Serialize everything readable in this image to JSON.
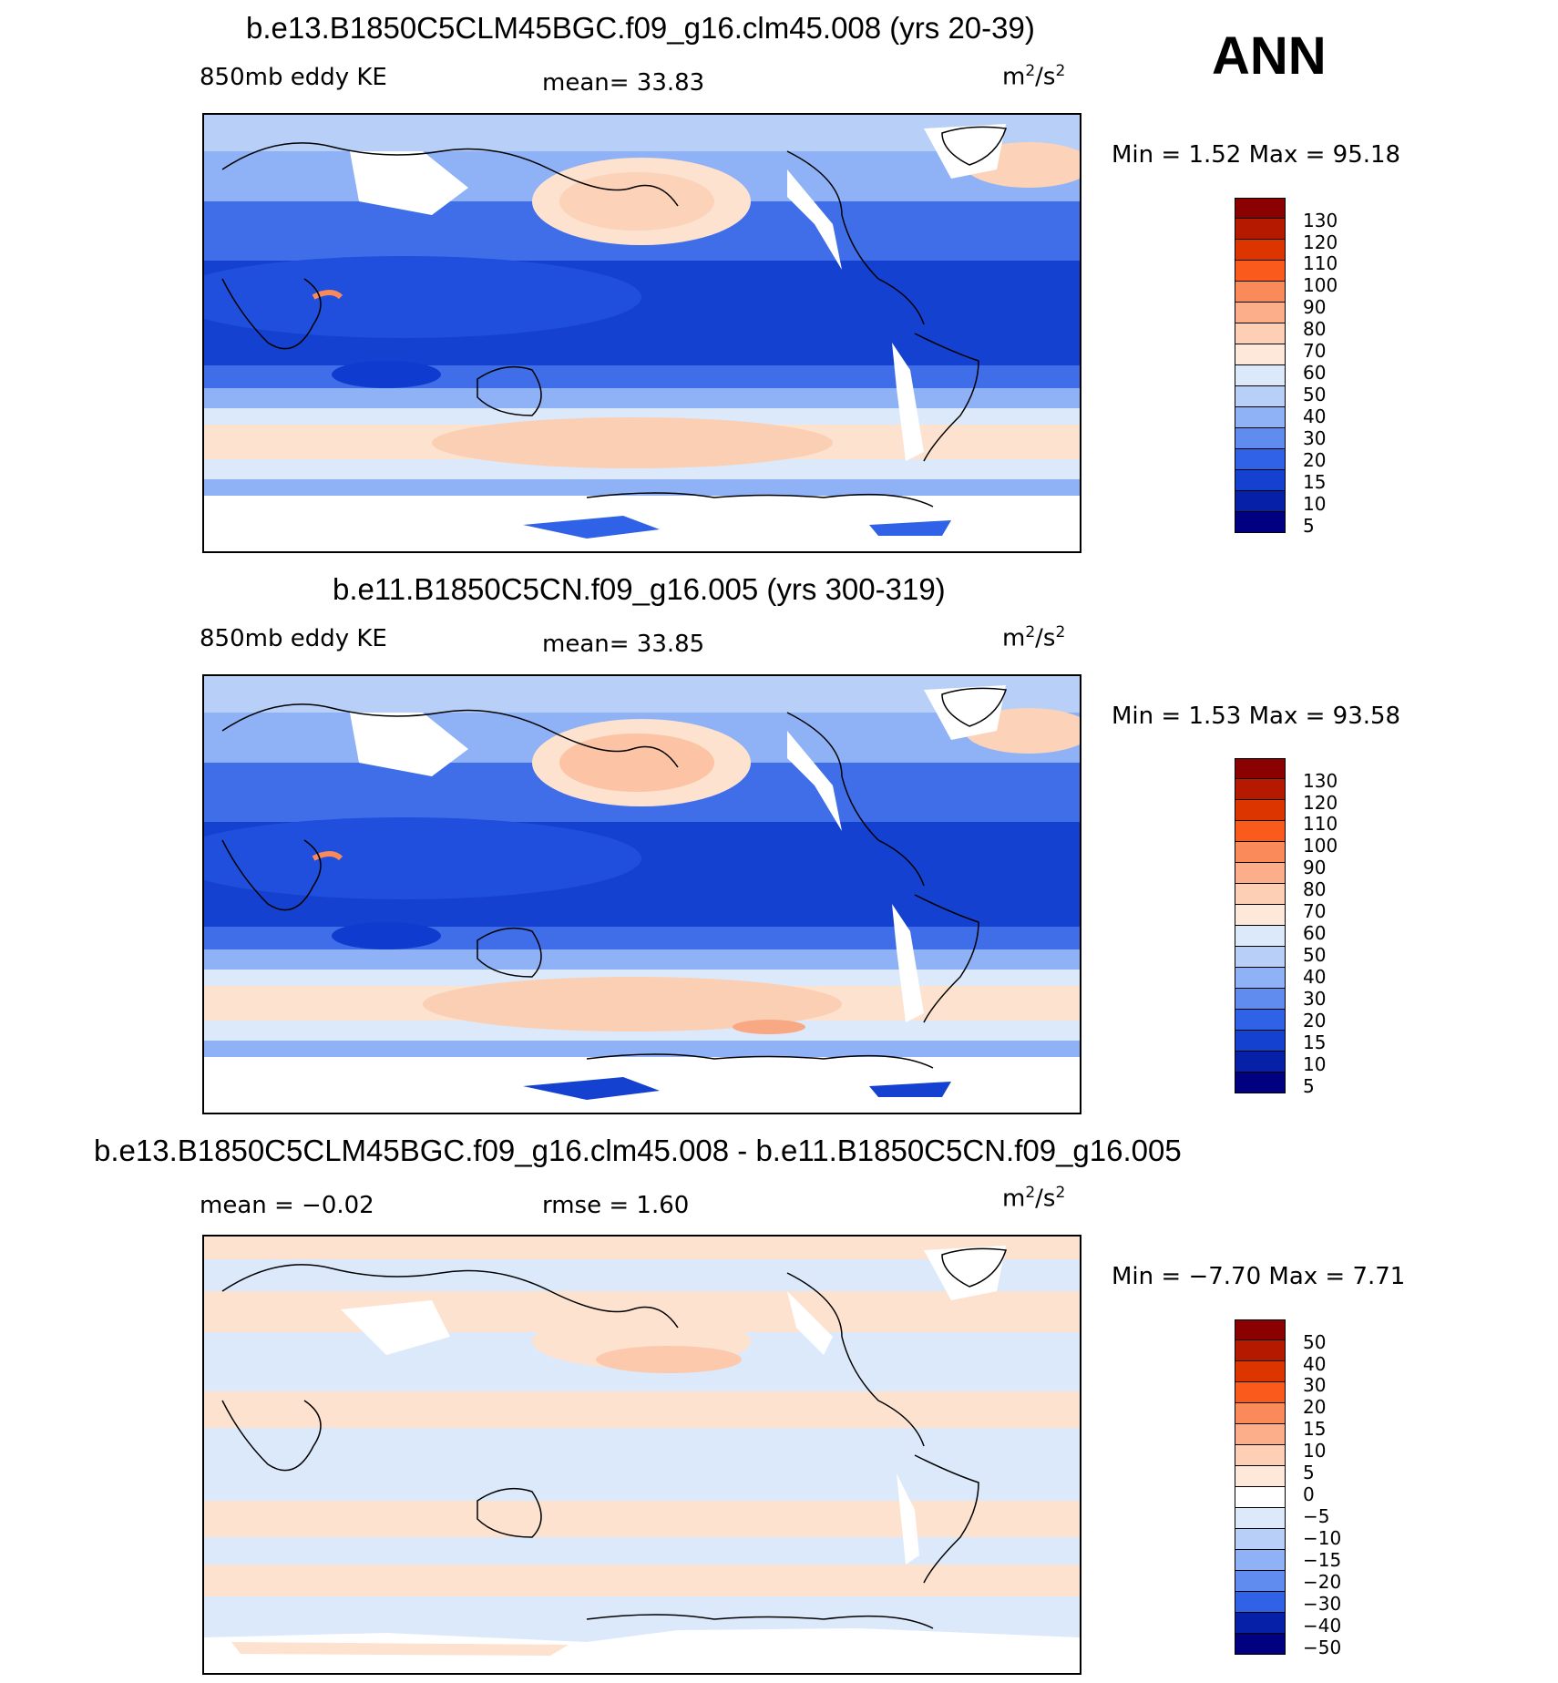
{
  "season": "ANN",
  "units": {
    "base": "m",
    "exp1": "2",
    "slash": "/s",
    "exp2": "2"
  },
  "colors": {
    "ocean_deep_blue": "#0f3ccf",
    "mid_blue": "#3f6ee8",
    "light_blue": "#8fb1f5",
    "very_light_blue": "#d9e9fb",
    "peach": "#fde2cf",
    "salmon": "#f8b594",
    "land_white": "#ffffff"
  },
  "panels": [
    {
      "title": "b.e13.B1850C5CLM45BGC.f09_g16.clm45.008 (yrs 20-39)",
      "left_label": "850mb eddy KE",
      "center_label": "mean=   33.83",
      "minmax": "Min =     1.52 Max =    95.18",
      "colorbar": {
        "labels": [
          "130",
          "120",
          "110",
          "100",
          "90",
          "80",
          "70",
          "60",
          "50",
          "40",
          "30",
          "20",
          "15",
          "10",
          "5"
        ],
        "colors": [
          "#8b0000",
          "#b51a00",
          "#dc3500",
          "#fa5a1c",
          "#fb8a5a",
          "#fcad8a",
          "#fdd0b5",
          "#fde8da",
          "#dbe9fb",
          "#b8d0f8",
          "#8fb1f5",
          "#5f8cee",
          "#2f62e6",
          "#1441cf",
          "#0620a8",
          "#000080"
        ]
      }
    },
    {
      "title": "b.e11.B1850C5CN.f09_g16.005 (yrs 300-319)",
      "left_label": "850mb eddy KE",
      "center_label": "mean=   33.85",
      "minmax": "Min =     1.53 Max =    93.58",
      "colorbar": {
        "labels": [
          "130",
          "120",
          "110",
          "100",
          "90",
          "80",
          "70",
          "60",
          "50",
          "40",
          "30",
          "20",
          "15",
          "10",
          "5"
        ],
        "colors": [
          "#8b0000",
          "#b51a00",
          "#dc3500",
          "#fa5a1c",
          "#fb8a5a",
          "#fcad8a",
          "#fdd0b5",
          "#fde8da",
          "#dbe9fb",
          "#b8d0f8",
          "#8fb1f5",
          "#5f8cee",
          "#2f62e6",
          "#1441cf",
          "#0620a8",
          "#000080"
        ]
      }
    },
    {
      "title": "b.e13.B1850C5CLM45BGC.f09_g16.clm45.008 - b.e11.B1850C5CN.f09_g16.005",
      "left_label": "mean =   −0.02",
      "center_label": "rmse =     1.60",
      "minmax": "Min =   −7.70 Max =     7.71",
      "colorbar": {
        "labels": [
          "50",
          "40",
          "30",
          "20",
          "15",
          "10",
          "5",
          "0",
          "−5",
          "−10",
          "−15",
          "−20",
          "−30",
          "−40",
          "−50"
        ],
        "colors": [
          "#8b0000",
          "#b51a00",
          "#dc3500",
          "#fa5a1c",
          "#fb8a5a",
          "#fcad8a",
          "#fdd0b5",
          "#fde8da",
          "#ffffff",
          "#dbe9fb",
          "#b8d0f8",
          "#8fb1f5",
          "#5f8cee",
          "#2f62e6",
          "#0620a8",
          "#000080"
        ]
      }
    }
  ]
}
